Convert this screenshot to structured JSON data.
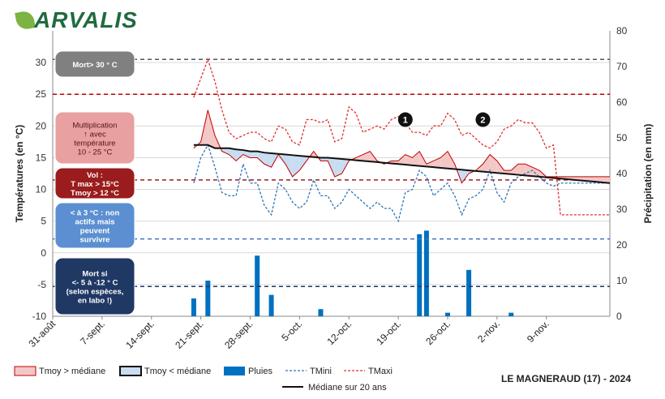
{
  "logo": {
    "text": "ARVALIS"
  },
  "station": "LE MAGNERAUD (17) - 2024",
  "chart_data": {
    "type": "line",
    "title": "",
    "ylabel": "Températures (en °C)",
    "y2label": "Précipitation (en mm)",
    "ylim": [
      -10,
      35
    ],
    "y2lim": [
      0,
      80
    ],
    "yticks": [
      -10,
      -5,
      0,
      5,
      10,
      15,
      20,
      25,
      30
    ],
    "y2ticks": [
      0,
      10,
      20,
      30,
      40,
      50,
      60,
      70,
      80
    ],
    "x_start": "31-août",
    "x_tick_labels": [
      "31-août",
      "7-sept.",
      "14-sept.",
      "21-sept.",
      "28-sept.",
      "5-oct.",
      "12-oct.",
      "19-oct.",
      "26-oct.",
      "2-nov.",
      "9-nov."
    ],
    "n_days": 80,
    "thresholds": [
      {
        "value": 30.5,
        "color": "#555555",
        "style": "dash"
      },
      {
        "value": 25,
        "color": "#c00000",
        "style": "dash"
      },
      {
        "value": 11.5,
        "color": "#9b1c1c",
        "style": "dash"
      },
      {
        "value": 2.2,
        "color": "#4472c4",
        "style": "dash"
      },
      {
        "value": -5.3,
        "color": "#1f3864",
        "style": "dash"
      }
    ],
    "tmaxi": [
      null,
      null,
      null,
      null,
      null,
      null,
      null,
      null,
      null,
      null,
      null,
      null,
      null,
      null,
      null,
      null,
      null,
      null,
      null,
      null,
      24.5,
      27.5,
      30.5,
      27,
      22.5,
      19,
      18,
      18.5,
      19,
      19,
      18,
      17.5,
      20,
      19.5,
      17.5,
      17,
      21,
      21,
      20.5,
      21,
      17.5,
      18,
      23,
      22,
      19,
      19.5,
      20,
      19.5,
      21,
      21.5,
      20.5,
      19,
      19,
      18.5,
      20,
      20,
      22,
      21,
      18.5,
      19,
      18,
      17,
      16.5,
      17.5,
      19.5,
      20,
      21,
      20.5,
      20.5,
      19,
      16.5,
      17,
      6,
      6,
      6,
      6,
      6,
      6,
      6,
      6
    ],
    "tmini": [
      null,
      null,
      null,
      null,
      null,
      null,
      null,
      null,
      null,
      null,
      null,
      null,
      null,
      null,
      null,
      null,
      null,
      null,
      null,
      null,
      11,
      15,
      17,
      13.5,
      9.5,
      9,
      9,
      14,
      11,
      11,
      7.5,
      6,
      11,
      10,
      8,
      7,
      8,
      11.5,
      9,
      9,
      7,
      8,
      10,
      9,
      8,
      7,
      8,
      7,
      7,
      5,
      9.5,
      10,
      13,
      12,
      9,
      10,
      11,
      9,
      6,
      8.5,
      9,
      10,
      13,
      9.5,
      8,
      11,
      12,
      12.5,
      13,
      12,
      11,
      10.5,
      11,
      11,
      11,
      11,
      11,
      11,
      11,
      11
    ],
    "tmoy_obs": [
      null,
      null,
      null,
      null,
      null,
      null,
      null,
      null,
      null,
      null,
      null,
      null,
      null,
      null,
      null,
      null,
      null,
      null,
      null,
      null,
      16.5,
      17.5,
      22.5,
      18.5,
      16,
      15.5,
      14.5,
      15.5,
      15,
      15,
      14,
      13.5,
      15.5,
      14,
      12,
      13,
      14.5,
      16,
      14.5,
      14.5,
      12,
      12.5,
      14.5,
      15,
      15.5,
      16,
      14.5,
      14,
      14.5,
      14.5,
      15.5,
      15,
      16,
      14,
      14.5,
      15,
      16,
      14,
      11,
      12.5,
      13,
      14,
      15.5,
      14.5,
      13,
      13,
      14,
      14,
      13.5,
      13,
      12,
      12,
      12,
      12,
      12,
      12,
      12,
      12,
      12,
      12
    ],
    "mediane": [
      null,
      null,
      null,
      null,
      null,
      null,
      null,
      null,
      null,
      null,
      null,
      null,
      null,
      null,
      null,
      null,
      null,
      null,
      null,
      null,
      17,
      17,
      17,
      16.5,
      16.5,
      16.5,
      16.3,
      16.2,
      16,
      16,
      15.8,
      15.7,
      15.6,
      15.5,
      15.4,
      15.3,
      15.2,
      15.1,
      15,
      15,
      14.9,
      14.8,
      14.7,
      14.6,
      14.5,
      14.4,
      14.3,
      14.2,
      14.1,
      14,
      13.9,
      13.8,
      13.7,
      13.6,
      13.5,
      13.4,
      13.3,
      13.2,
      13.1,
      13,
      12.9,
      12.8,
      12.7,
      12.6,
      12.5,
      12.4,
      12.3,
      12.2,
      12.1,
      12,
      11.9,
      11.8,
      11.7,
      11.6,
      11.5,
      11.4,
      11.3,
      11.2,
      11.1,
      11
    ],
    "pluies": [
      0,
      0,
      0,
      0,
      0,
      0,
      0,
      0,
      0,
      0,
      0,
      0,
      0,
      0,
      0,
      0,
      0,
      0,
      0,
      0,
      5,
      0,
      10,
      0,
      0,
      0,
      0,
      0,
      0,
      17,
      0,
      6,
      0,
      0,
      0,
      0,
      0,
      0,
      2,
      0,
      0,
      0,
      0,
      0,
      0,
      0,
      0,
      0,
      0,
      0,
      0,
      0,
      23,
      24,
      0,
      0,
      1,
      0,
      0,
      13,
      0,
      0,
      0,
      0,
      0,
      1,
      0,
      0,
      0,
      0,
      0,
      0,
      0,
      0,
      0,
      0,
      0,
      0,
      0,
      0
    ],
    "annotations": [
      {
        "label": "1",
        "day": 50,
        "temp": 21
      },
      {
        "label": "2",
        "day": 61,
        "temp": 21
      }
    ],
    "boxes": [
      {
        "text": "Mort> 30 ° C",
        "fill": "#808080"
      },
      {
        "text": "Multiplication ↑ avec température 10 - 25 °C",
        "fill": "#e8a0a0"
      },
      {
        "text": "Vol : T max > 15°C Tmoy > 12 °C",
        "fill": "#9b1c1c"
      },
      {
        "text": "< à 3 °C : non actifs mais peuvent survivre",
        "fill": "#5b8fd1"
      },
      {
        "text": "Mort si <- 5 à -12 ° C (selon espèces, en labo !)",
        "fill": "#1f3864"
      }
    ],
    "legend": {
      "tmoy_sup": "Tmoy > médiane",
      "tmoy_inf": "Tmoy < médiane",
      "pluies": "Pluies",
      "tmini": "TMini",
      "tmaxi": "TMaxi",
      "mediane": "Médiane sur 20 ans"
    }
  }
}
